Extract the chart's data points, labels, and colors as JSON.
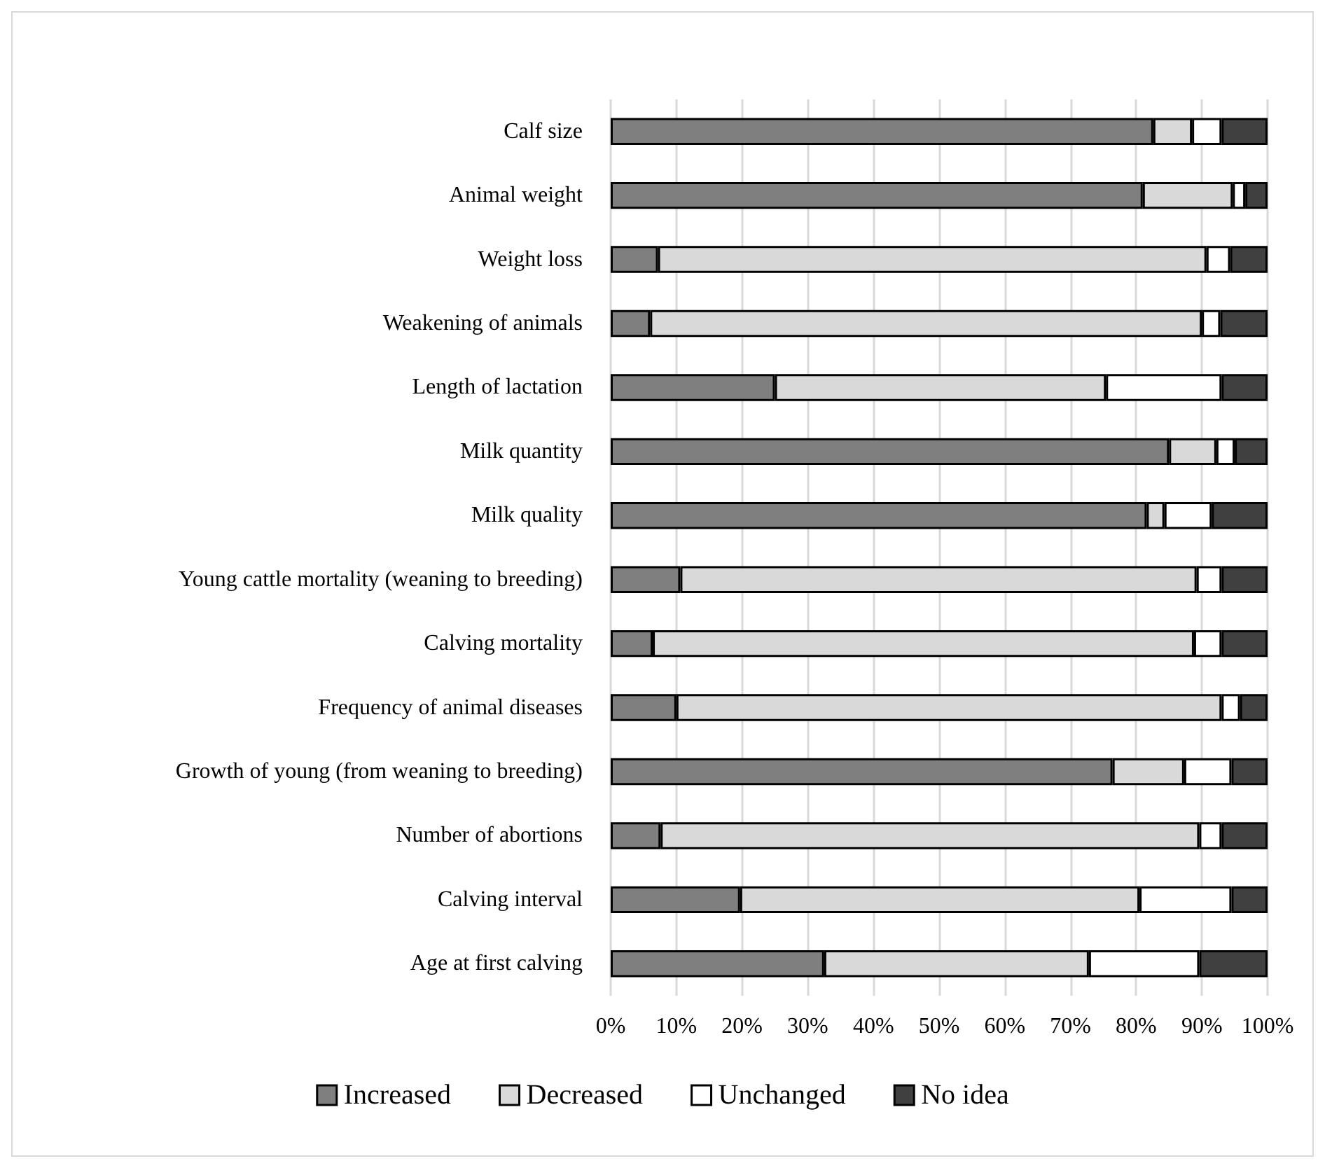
{
  "chart_data": {
    "type": "bar",
    "orientation": "horizontal",
    "stacked": true,
    "categories": [
      "Calf size",
      "Animal weight",
      "Weight loss",
      "Weakening of animals",
      "Length of lactation",
      "Milk quantity",
      "Milk quality",
      "Young cattle mortality (weaning to breeding)",
      "Calving mortality",
      "Frequency of animal diseases",
      "Growth of young (from weaning to breeding)",
      "Number of abortions",
      "Calving interval",
      "Age at first calving"
    ],
    "series": [
      {
        "name": "Increased",
        "color": "#7f7f7f",
        "values": [
          82.6,
          81,
          7.2,
          6,
          25,
          85,
          81.6,
          10.6,
          6.4,
          10,
          76.4,
          7.6,
          19.7,
          32.5
        ]
      },
      {
        "name": "Decreased",
        "color": "#d9d9d9",
        "values": [
          5.9,
          13.7,
          83.5,
          84,
          50.4,
          7.2,
          2.7,
          78.6,
          82.4,
          83,
          10.9,
          82,
          60.8,
          40.3
        ]
      },
      {
        "name": "Unchanged",
        "color": "#ffffff",
        "values": [
          4.5,
          1.9,
          3.6,
          2.8,
          17.6,
          2.8,
          7.2,
          3.8,
          4.2,
          2.8,
          7.2,
          3.4,
          14,
          16.8
        ]
      },
      {
        "name": "No idea",
        "color": "#404040",
        "values": [
          7,
          3.4,
          5.7,
          7.2,
          7,
          5,
          8.5,
          7,
          7,
          4.2,
          5.5,
          7,
          5.5,
          10.4
        ]
      }
    ],
    "xlim": [
      0,
      100
    ],
    "xticks": [
      {
        "value": 0,
        "label": "0%"
      },
      {
        "value": 10,
        "label": "10%"
      },
      {
        "value": 20,
        "label": "20%"
      },
      {
        "value": 30,
        "label": "30%"
      },
      {
        "value": 40,
        "label": "40%"
      },
      {
        "value": 50,
        "label": "50%"
      },
      {
        "value": 60,
        "label": "60%"
      },
      {
        "value": 70,
        "label": "70%"
      },
      {
        "value": 80,
        "label": "80%"
      },
      {
        "value": 90,
        "label": "90%"
      },
      {
        "value": 100,
        "label": "100%"
      }
    ],
    "grid": "x",
    "legend": "bottom"
  }
}
